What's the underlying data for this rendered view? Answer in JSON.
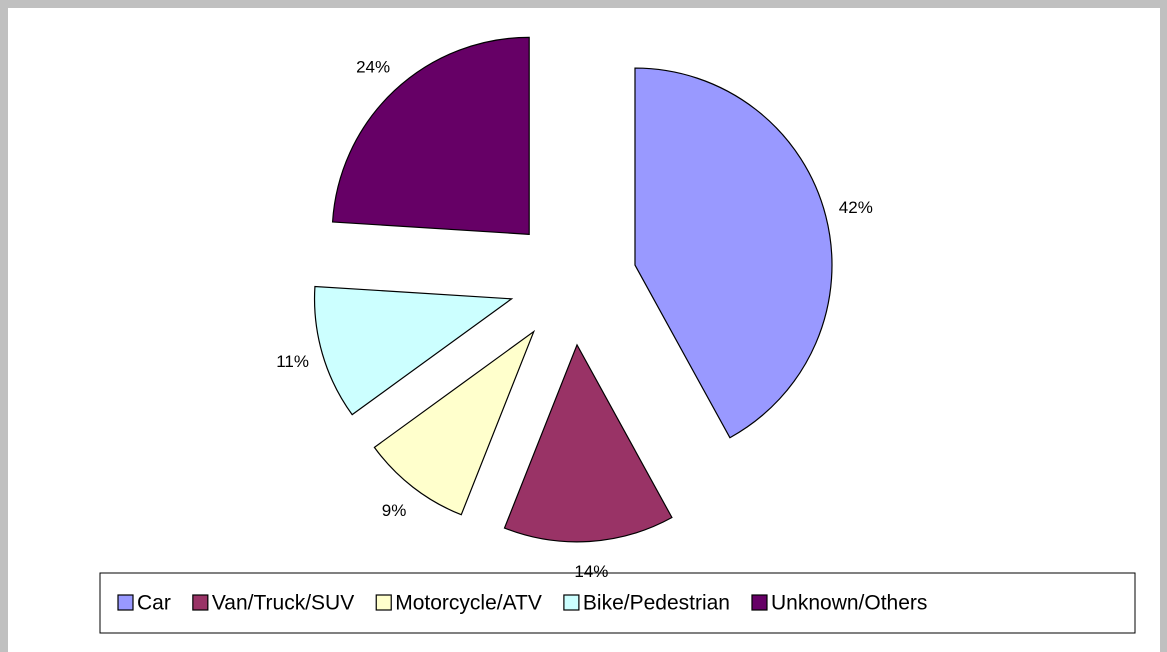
{
  "chart_data": {
    "type": "pie",
    "categories": [
      "Car",
      "Van/Truck/SUV",
      "Motorcycle/ATV",
      "Bike/Pedestrian",
      "Unknown/Others"
    ],
    "values": [
      42,
      14,
      9,
      11,
      24
    ],
    "value_labels": [
      "42%",
      "14%",
      "9%",
      "11%",
      "24%"
    ],
    "colors": [
      "#9999ff",
      "#993366",
      "#ffffcc",
      "#ccffff",
      "#660066"
    ],
    "legend": "bottom"
  }
}
